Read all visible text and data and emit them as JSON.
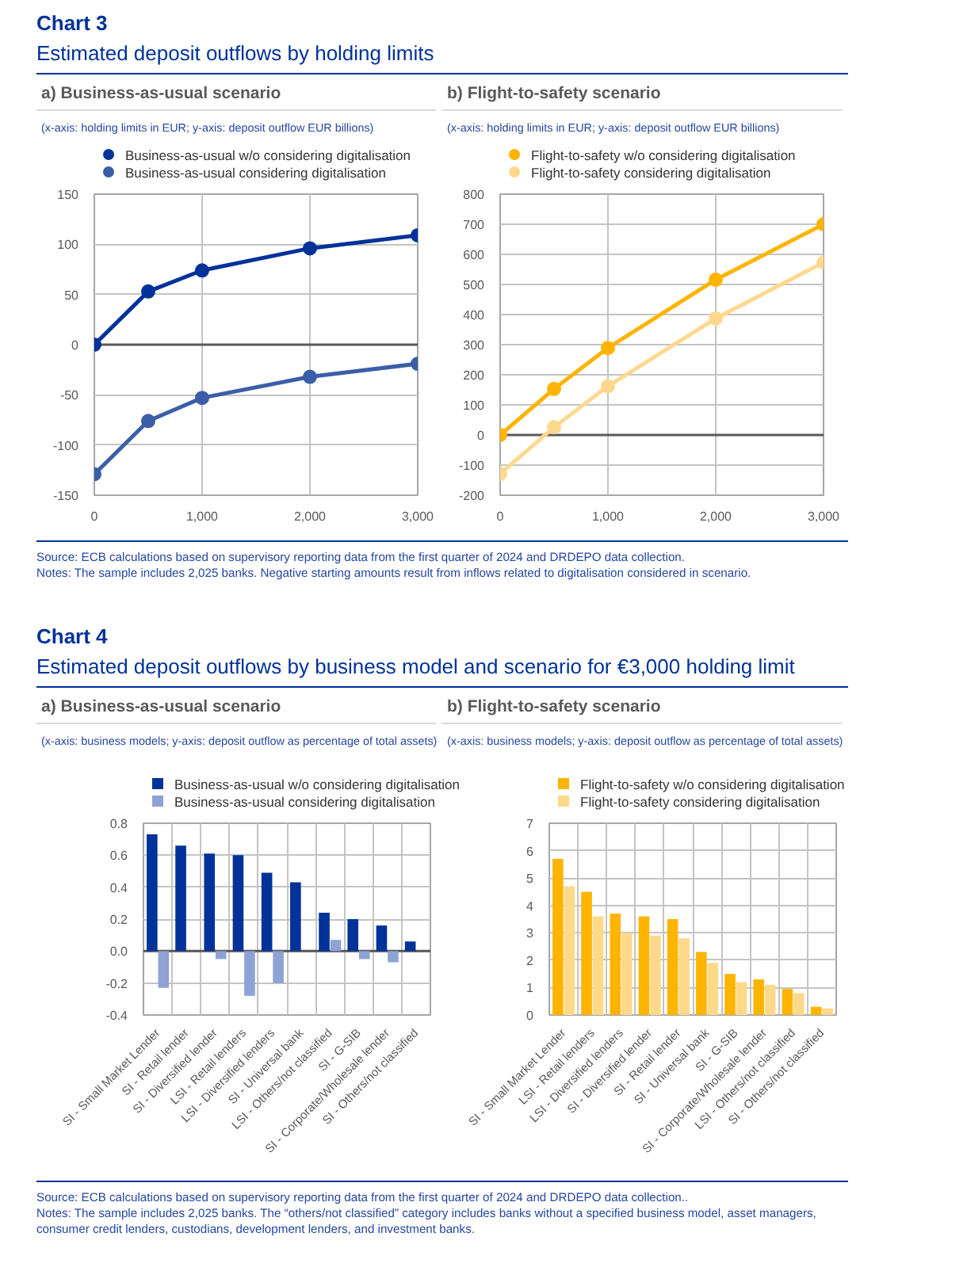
{
  "chart_data": [
    {
      "type": "line",
      "title": "a) Business-as-usual scenario",
      "subtitle": "(x-axis: holding limits in EUR; y-axis: deposit outflow EUR billions)",
      "annotations": [
        "Chart 3",
        "Estimated deposit outflows by holding limits"
      ],
      "x": [
        0,
        500,
        1000,
        2000,
        3000
      ],
      "series": [
        {
          "name": "Business-as-usual w/o considering digitalisation",
          "color": "#003299",
          "values": [
            0,
            53,
            74,
            96,
            109
          ]
        },
        {
          "name": "Business-as-usual considering digitalisation",
          "color": "#3c5ea8",
          "values": [
            -129,
            -76,
            -53,
            -32,
            -19
          ]
        }
      ],
      "xlim": [
        0,
        3000
      ],
      "xticks": [
        0,
        {
          "value": 1000,
          "label": "1,000"
        },
        {
          "value": 2000,
          "label": "2,000"
        },
        {
          "value": 3000,
          "label": "3,000"
        }
      ],
      "ylim": [
        -150,
        150
      ],
      "yticks": [
        -150,
        -100,
        -50,
        0,
        50,
        100,
        150
      ],
      "grid": true,
      "legend": "top",
      "marker": "circle",
      "line_style": "solid",
      "ref_lines": [
        {
          "axis": "y",
          "value": 0,
          "color": "#595959"
        }
      ]
    },
    {
      "type": "line",
      "title": "b) Flight-to-safety scenario",
      "subtitle": "(x-axis: holding limits in EUR; y-axis: deposit outflow EUR billions)",
      "annotations": [
        "Source: ECB calculations based on supervisory reporting data from the first quarter of 2024 and DRDEPO data collection.",
        "Notes: The sample includes 2,025 banks. Negative starting amounts result from inflows related to digitalisation considered in scenario."
      ],
      "x": [
        0,
        500,
        1000,
        2000,
        3000
      ],
      "series": [
        {
          "name": "Flight-to-safety w/o considering digitalisation",
          "color": "#ffb400",
          "values": [
            0,
            153,
            289,
            516,
            700
          ]
        },
        {
          "name": "Flight-to-safety considering digitalisation",
          "color": "#fdd98f",
          "values": [
            -129,
            26,
            162,
            387,
            573
          ]
        }
      ],
      "xlim": [
        0,
        3000
      ],
      "xticks": [
        0,
        {
          "value": 1000,
          "label": "1,000"
        },
        {
          "value": 2000,
          "label": "2,000"
        },
        {
          "value": 3000,
          "label": "3,000"
        }
      ],
      "ylim": [
        -200,
        800
      ],
      "yticks": [
        -200,
        -100,
        0,
        100,
        200,
        300,
        400,
        500,
        600,
        700,
        800
      ],
      "grid": true,
      "legend": "top",
      "marker": "circle",
      "line_style": "solid",
      "ref_lines": [
        {
          "axis": "y",
          "value": 0,
          "color": "#595959"
        }
      ]
    },
    {
      "type": "bar",
      "title": "a) Business-as-usual scenario",
      "subtitle": "(x-axis: business models; y-axis: deposit outflow as percentage of total assets)",
      "annotations": [
        "Chart 4",
        "Estimated deposit outflows by business model and scenario for €3,000 holding limit"
      ],
      "categories": [
        "SI - Small Market Lender",
        "SI - Retail lender",
        "SI - Diversified lender",
        "LSI - Retail lenders",
        "LSI - Diversified lenders",
        "SI - Universal bank",
        "LSI - Others/not classified",
        "SI - G-SIB",
        "SI - Corporate/Wholesale lender",
        "SI - Others/not classified"
      ],
      "series": [
        {
          "name": "Business-as-usual w/o considering digitalisation",
          "color": "#003299",
          "values": [
            0.73,
            0.66,
            0.61,
            0.6,
            0.49,
            0.43,
            0.24,
            0.2,
            0.16,
            0.06
          ]
        },
        {
          "name": "Business-as-usual considering digitalisation",
          "color": "#8ea2d6",
          "values": [
            -0.23,
            null,
            -0.05,
            -0.28,
            -0.2,
            null,
            0.07,
            -0.05,
            -0.07,
            null
          ]
        }
      ],
      "ylim": [
        -0.4,
        0.8
      ],
      "yticks": [
        -0.4,
        -0.2,
        {
          "value": 0,
          "label": "0.0"
        },
        0.2,
        0.4,
        0.6,
        0.8
      ],
      "grid": true,
      "legend": "top",
      "ref_lines": [
        {
          "axis": "y",
          "value": 0,
          "color": "#595959"
        }
      ]
    },
    {
      "type": "bar",
      "title": "b) Flight-to-safety scenario",
      "subtitle": "(x-axis: business models; y-axis: deposit outflow as percentage of total assets)",
      "annotations": [
        "Source: ECB calculations based on supervisory reporting data from the first quarter of 2024 and DRDEPO data collection..",
        "Notes: The sample includes 2,025 banks. The “others/not classified” category includes banks without a specified business model, asset managers, consumer credit lenders, custodians, development lenders, and investment banks."
      ],
      "categories": [
        "SI - Small Market Lender",
        "LSI - Retail lenders",
        "LSI - Diversified lenders",
        "SI - Diversified lender",
        "SI - Retail lender",
        "SI - Universal bank",
        "SI - G-SIB",
        "SI - Corporate/Wholesale lender",
        "LSI - Others/not classified",
        "SI - Others/not classified"
      ],
      "series": [
        {
          "name": "Flight-to-safety w/o considering digitalisation",
          "color": "#ffb400",
          "values": [
            5.7,
            4.5,
            3.7,
            3.6,
            3.5,
            2.3,
            1.5,
            1.3,
            0.95,
            0.3
          ]
        },
        {
          "name": "Flight-to-safety considering digitalisation",
          "color": "#ffd98a",
          "values": [
            4.7,
            3.6,
            3.0,
            2.9,
            2.8,
            1.9,
            1.2,
            1.1,
            0.8,
            0.25
          ]
        }
      ],
      "ylim": [
        0,
        7
      ],
      "yticks": [
        0,
        1,
        2,
        3,
        4,
        5,
        6,
        7
      ],
      "grid": true,
      "legend": "top"
    }
  ]
}
